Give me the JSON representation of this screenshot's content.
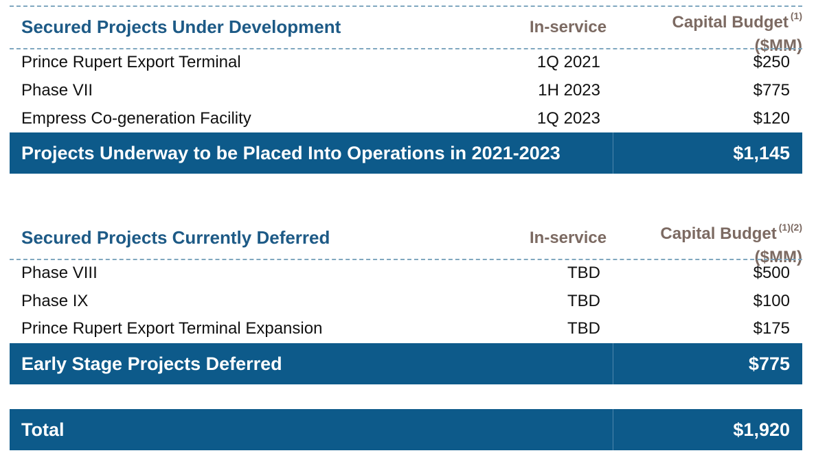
{
  "section1": {
    "title": "Secured Projects Under Development",
    "col_inservice": "In-service",
    "col_budget_line1": "Capital Budget",
    "col_budget_note": "(1)",
    "col_budget_line2": "($MM)",
    "rows": [
      {
        "name": "Prince Rupert Export Terminal",
        "date": "1Q 2021",
        "amount": "$250"
      },
      {
        "name": "Phase VII",
        "date": "1H 2023",
        "amount": "$775"
      },
      {
        "name": "Empress Co-generation Facility",
        "date": "1Q 2023",
        "amount": "$120"
      }
    ],
    "subtotal_label": "Projects Underway to be Placed Into Operations in 2021-2023",
    "subtotal_value": "$1,145"
  },
  "section2": {
    "title": "Secured Projects Currently Deferred",
    "col_inservice": "In-service",
    "col_budget_line1": "Capital Budget",
    "col_budget_note": "(1)(2)",
    "col_budget_line2": "($MM)",
    "rows": [
      {
        "name": "Phase VIII",
        "date": "TBD",
        "amount": "$500"
      },
      {
        "name": "Phase IX",
        "date": "TBD",
        "amount": "$100"
      },
      {
        "name": "Prince Rupert Export Terminal Expansion",
        "date": "TBD",
        "amount": "$175"
      }
    ],
    "subtotal_label": "Early Stage Projects Deferred",
    "subtotal_value": "$775"
  },
  "total": {
    "label": "Total",
    "value": "$1,920"
  }
}
